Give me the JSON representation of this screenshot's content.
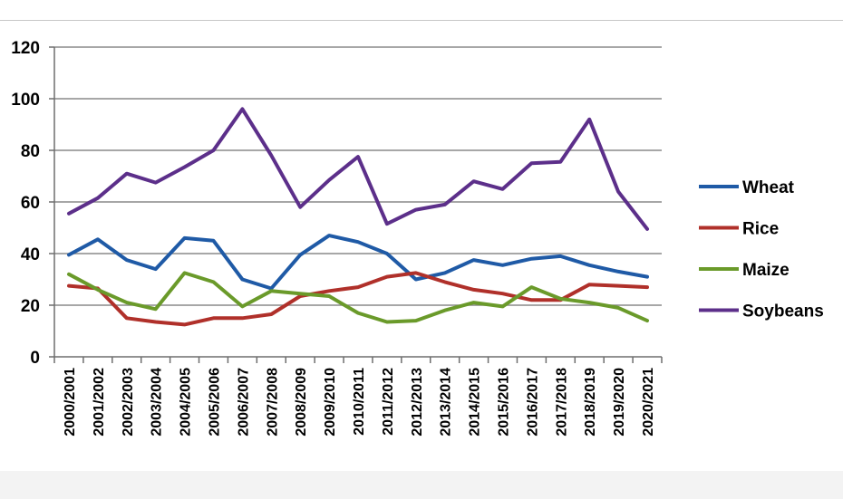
{
  "chart_data": {
    "type": "line",
    "title": "",
    "xlabel": "",
    "ylabel": "",
    "ylim": [
      0,
      120
    ],
    "yticks": [
      0,
      20,
      40,
      60,
      80,
      100,
      120
    ],
    "grid": true,
    "legend_position": "right",
    "categories": [
      "2000/2001",
      "2001/2002",
      "2002/2003",
      "2003/2004",
      "2004/2005",
      "2005/2006",
      "2006/2007",
      "2007/2008",
      "2008/2009",
      "2009/2010",
      "2010/2011",
      "2011/2012",
      "2012/2013",
      "2013/2014",
      "2014/2015",
      "2015/2016",
      "2016/2017",
      "2017/2018",
      "2018/2019",
      "2019/2020",
      "2020/2021"
    ],
    "series": [
      {
        "name": "Wheat",
        "color": "#1f5aa6",
        "values": [
          39.5,
          45.5,
          37.5,
          34,
          46,
          45,
          30,
          26.5,
          39.5,
          47,
          44.5,
          40,
          30,
          32.5,
          37.5,
          35.5,
          38,
          39,
          35.5,
          33,
          31
        ]
      },
      {
        "name": "Rice",
        "color": "#b0302a",
        "values": [
          27.5,
          26.5,
          15,
          13.5,
          12.5,
          15,
          15,
          16.5,
          23.5,
          25.5,
          27,
          31,
          32.5,
          29,
          26,
          24.5,
          22,
          22,
          28,
          27.5,
          27
        ]
      },
      {
        "name": "Maize",
        "color": "#6a9a2a",
        "values": [
          32,
          26,
          21,
          18.5,
          32.5,
          29,
          19.5,
          25.5,
          24.5,
          23.5,
          17,
          13.5,
          14,
          18,
          21,
          19.5,
          27,
          22.5,
          21,
          19,
          14
        ]
      },
      {
        "name": "Soybeans",
        "color": "#5c2f8a",
        "values": [
          55.5,
          61.5,
          71,
          67.5,
          73.5,
          80,
          96,
          78,
          58,
          68.5,
          77.5,
          51.5,
          57,
          59,
          68,
          65,
          75,
          75.5,
          92,
          64,
          49.5
        ]
      }
    ]
  }
}
